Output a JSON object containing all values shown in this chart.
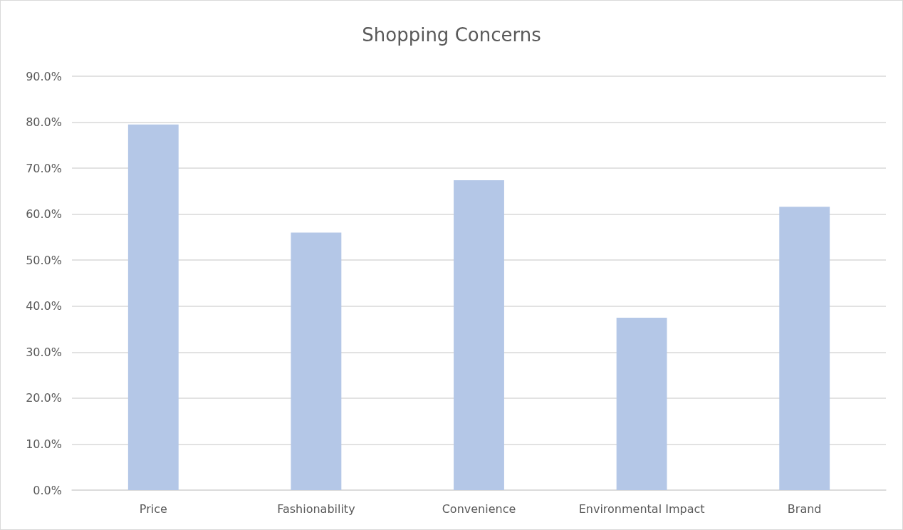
{
  "chart_data": {
    "type": "bar",
    "title": "Shopping Concerns",
    "categories": [
      "Price",
      "Fashionability",
      "Convenience",
      "Environmental Impact",
      "Brand"
    ],
    "values": [
      79.5,
      56.0,
      67.4,
      37.5,
      61.6
    ],
    "color": "#b4c7e7",
    "ylim": [
      0,
      90
    ],
    "yticks": [
      {
        "value": 0,
        "label": "0.0%"
      },
      {
        "value": 10,
        "label": "10.0%"
      },
      {
        "value": 20,
        "label": "20.0%"
      },
      {
        "value": 30,
        "label": "30.0%"
      },
      {
        "value": 40,
        "label": "40.0%"
      },
      {
        "value": 50,
        "label": "50.0%"
      },
      {
        "value": 60,
        "label": "60.0%"
      },
      {
        "value": 70,
        "label": "70.0%"
      },
      {
        "value": 80,
        "label": "80.0%"
      },
      {
        "value": 90,
        "label": "90.0%"
      }
    ],
    "grid": "y"
  }
}
